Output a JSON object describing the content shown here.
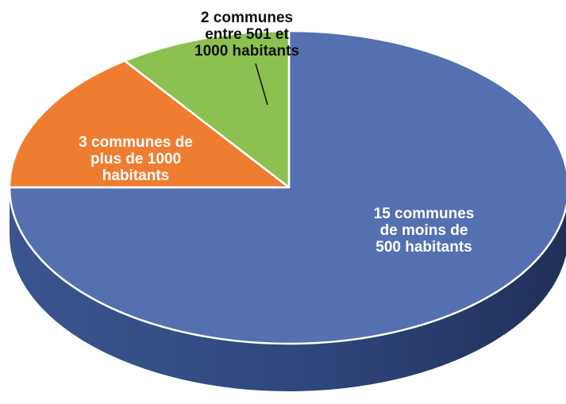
{
  "chart_data": {
    "type": "pie",
    "style": "3d",
    "labels": [
      [
        "15 communes",
        "de moins de",
        "500 habitants"
      ],
      [
        "3 communes de",
        "plus de 1000",
        "habitants"
      ],
      [
        "2 communes",
        "entre 501 et",
        "1000 habitants"
      ]
    ],
    "values": [
      15,
      3,
      2
    ],
    "colors": [
      "#5570b0",
      "#ee7d31",
      "#8cc151"
    ],
    "side_colors": [
      "#2e4478",
      "#a85516",
      "#5e8a2f"
    ],
    "legend": "none",
    "data_labels": "inside-and-callout"
  }
}
